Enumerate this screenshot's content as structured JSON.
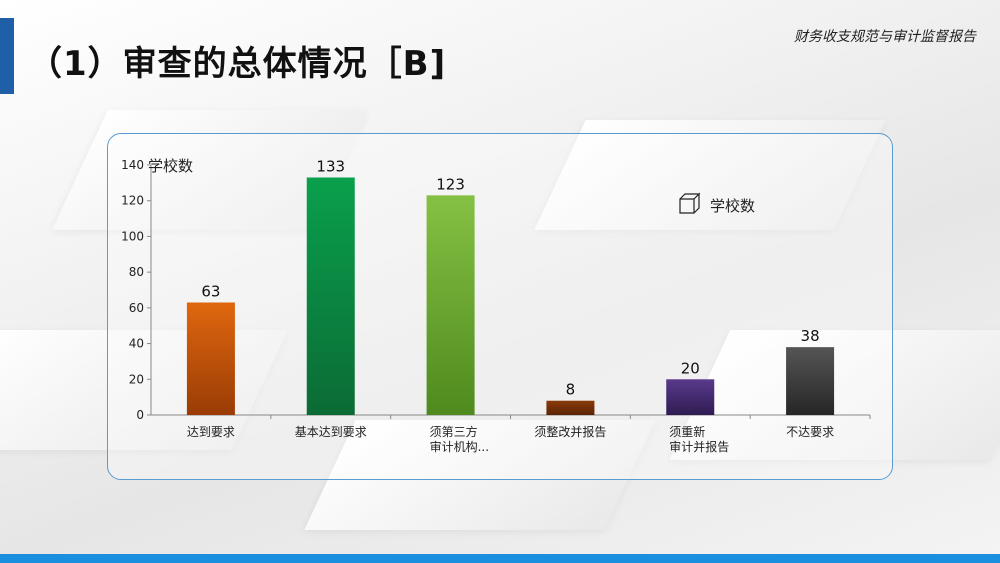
{
  "header": {
    "title": "（1）审查的总体情况［B]",
    "subtitle": "财务收支规范与审计监督报告"
  },
  "chart_data": {
    "type": "bar",
    "categories": [
      "达到要求",
      "基本达到要求",
      "须第三方\n审计机构...",
      "须整改并报告",
      "须重新\n审计并报告",
      "不达要求"
    ],
    "values": [
      63,
      133,
      123,
      8,
      20,
      38
    ],
    "ylabel": "学校数",
    "legend": "学校数",
    "ylim": [
      0,
      140
    ],
    "yticks": [
      0,
      20,
      40,
      60,
      80,
      100,
      120,
      140
    ],
    "colors": [
      [
        "#e0670f",
        "#9a3c05"
      ],
      [
        "#0aa04c",
        "#0b6b35"
      ],
      [
        "#84c143",
        "#4f8a1e"
      ],
      [
        "#8a3c0a",
        "#5a2404"
      ],
      [
        "#5a3a8c",
        "#2e1c52"
      ],
      [
        "#555555",
        "#262626"
      ]
    ],
    "legend_position": "top-right",
    "grid": false
  }
}
